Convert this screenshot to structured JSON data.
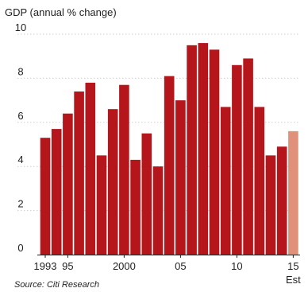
{
  "chart_data": {
    "type": "bar",
    "ylabel": "GDP (annual % change)",
    "ylim": [
      0,
      10
    ],
    "yticks": [
      0,
      2,
      4,
      6,
      8,
      10
    ],
    "grid": true,
    "x": [
      1993,
      1994,
      1995,
      1996,
      1997,
      1998,
      1999,
      2000,
      2001,
      2002,
      2003,
      2004,
      2005,
      2006,
      2007,
      2008,
      2009,
      2010,
      2011,
      2012,
      2013,
      2014,
      2015
    ],
    "values": [
      5.3,
      5.7,
      6.4,
      7.4,
      7.8,
      4.5,
      6.6,
      7.7,
      4.3,
      5.5,
      4.0,
      8.1,
      7.0,
      9.5,
      9.6,
      9.3,
      6.7,
      8.6,
      8.9,
      6.7,
      4.5,
      4.9,
      5.6
    ],
    "x_tick_labels": [
      {
        "x": 1993,
        "label": "1993"
      },
      {
        "x": 1995,
        "label": "95"
      },
      {
        "x": 2000,
        "label": "2000"
      },
      {
        "x": 2005,
        "label": "05"
      },
      {
        "x": 2010,
        "label": "10"
      },
      {
        "x": 2015,
        "label": "15"
      }
    ],
    "estimate_label": "Est",
    "estimate_from": 2015,
    "colors": {
      "bar": "#b5161b",
      "estimate_bar": "#e0917a",
      "grid": "#cfcfcf",
      "axis": "#222222"
    }
  },
  "source": "Source: Citi Research"
}
